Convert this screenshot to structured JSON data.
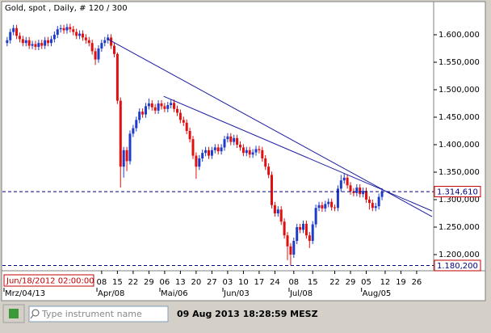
{
  "chart_data": {
    "type": "candlestick",
    "title": "Gold, spot , Daily, # 120 / 300",
    "up_color": "#1e3cc8",
    "down_color": "#e01010",
    "xlim": [
      -1.5,
      135.4
    ],
    "ylim": [
      1170.6,
      1658.8
    ],
    "yticks": [
      {
        "value": 1200,
        "label": "1.200,000"
      },
      {
        "value": 1250,
        "label": "1.250,000"
      },
      {
        "value": 1300,
        "label": "1.300,000"
      },
      {
        "value": 1350,
        "label": "1.350,000"
      },
      {
        "value": 1400,
        "label": "1.400,000"
      },
      {
        "value": 1450,
        "label": "1.450,000"
      },
      {
        "value": 1500,
        "label": "1.500,000"
      },
      {
        "value": 1550,
        "label": "1.550,000"
      },
      {
        "value": 1600,
        "label": "1.600,000"
      }
    ],
    "xticks": [
      {
        "value": 30,
        "label": "08"
      },
      {
        "value": 35,
        "label": "15"
      },
      {
        "value": 40,
        "label": "22"
      },
      {
        "value": 45,
        "label": "29"
      },
      {
        "value": 50,
        "label": "06"
      },
      {
        "value": 55,
        "label": "13"
      },
      {
        "value": 60,
        "label": "20"
      },
      {
        "value": 65,
        "label": "27"
      },
      {
        "value": 70,
        "label": "03"
      },
      {
        "value": 75,
        "label": "10"
      },
      {
        "value": 80,
        "label": "17"
      },
      {
        "value": 85,
        "label": "24"
      },
      {
        "value": 91,
        "label": "08"
      },
      {
        "value": 97,
        "label": "15"
      },
      {
        "value": 104,
        "label": "22"
      },
      {
        "value": 109,
        "label": "29"
      },
      {
        "value": 114,
        "label": "05"
      },
      {
        "value": 120,
        "label": "12"
      },
      {
        "value": 125,
        "label": "19"
      },
      {
        "value": 130,
        "label": "26"
      }
    ],
    "month_labels": [
      {
        "value": -1,
        "label": "Mrz/04/13"
      },
      {
        "value": 28.5,
        "label": "Apr/08"
      },
      {
        "value": 48.5,
        "label": "Mai/06"
      },
      {
        "value": 68.5,
        "label": "Jun/03"
      },
      {
        "value": 89.5,
        "label": "Jul/08"
      },
      {
        "value": 112.5,
        "label": "Aug/05"
      }
    ],
    "cursor_label": "Jun/18/2012 02:00:00",
    "levels": [
      {
        "value": 1314.61,
        "label": "1.314,610"
      },
      {
        "value": 1180.2,
        "label": "1.180,200"
      }
    ],
    "trend_lines": [
      {
        "x": [
          31.8,
          134.9
        ],
        "y": [
          1592.6,
          1269
        ]
      },
      {
        "x": [
          49.7,
          134.9
        ],
        "y": [
          1488,
          1279.4
        ]
      }
    ],
    "open": [
      1585,
      1590,
      1605,
      1612,
      1598,
      1592,
      1585,
      1590,
      1580,
      1583,
      1578,
      1585,
      1580,
      1590,
      1585,
      1592,
      1600,
      1610,
      1612,
      1608,
      1614,
      1610,
      1605,
      1598,
      1602,
      1595,
      1590,
      1585,
      1570,
      1555,
      1575,
      1585,
      1590,
      1595,
      1580,
      1565,
      1480,
      1360,
      1390,
      1370,
      1420,
      1430,
      1445,
      1460,
      1455,
      1470,
      1475,
      1468,
      1462,
      1475,
      1470,
      1465,
      1472,
      1476,
      1465,
      1458,
      1445,
      1440,
      1425,
      1410,
      1380,
      1360,
      1375,
      1385,
      1390,
      1380,
      1390,
      1395,
      1388,
      1395,
      1410,
      1415,
      1405,
      1412,
      1400,
      1395,
      1385,
      1390,
      1382,
      1386,
      1392,
      1390,
      1375,
      1360,
      1345,
      1290,
      1275,
      1282,
      1260,
      1235,
      1215,
      1200,
      1225,
      1250,
      1245,
      1256,
      1235,
      1225,
      1255,
      1285,
      1290,
      1284,
      1292,
      1296,
      1286,
      1285,
      1320,
      1335,
      1340,
      1326,
      1315,
      1312,
      1322,
      1310,
      1316,
      1300,
      1294,
      1285,
      1288,
      1305
    ],
    "high": [
      1596,
      1611,
      1618,
      1618,
      1604,
      1598,
      1596,
      1596,
      1589,
      1589,
      1591,
      1591,
      1596,
      1596,
      1598,
      1606,
      1616,
      1618,
      1618,
      1620,
      1620,
      1616,
      1611,
      1608,
      1608,
      1601,
      1596,
      1591,
      1576,
      1581,
      1591,
      1596,
      1601,
      1601,
      1586,
      1568,
      1486,
      1396,
      1396,
      1426,
      1436,
      1451,
      1466,
      1466,
      1476,
      1484,
      1481,
      1474,
      1481,
      1481,
      1476,
      1478,
      1482,
      1482,
      1471,
      1464,
      1451,
      1446,
      1431,
      1416,
      1386,
      1381,
      1391,
      1396,
      1396,
      1396,
      1401,
      1401,
      1401,
      1416,
      1421,
      1421,
      1418,
      1418,
      1406,
      1401,
      1396,
      1396,
      1392,
      1398,
      1398,
      1396,
      1381,
      1366,
      1351,
      1296,
      1288,
      1288,
      1266,
      1241,
      1221,
      1231,
      1256,
      1256,
      1262,
      1262,
      1241,
      1261,
      1291,
      1296,
      1296,
      1298,
      1302,
      1302,
      1291,
      1326,
      1345,
      1348,
      1346,
      1332,
      1321,
      1328,
      1328,
      1322,
      1322,
      1306,
      1300,
      1294,
      1311,
      1321
    ],
    "low": [
      1579,
      1584,
      1599,
      1592,
      1586,
      1579,
      1579,
      1574,
      1574,
      1572,
      1572,
      1574,
      1574,
      1579,
      1579,
      1586,
      1594,
      1604,
      1602,
      1602,
      1604,
      1599,
      1592,
      1592,
      1589,
      1584,
      1579,
      1564,
      1545,
      1549,
      1569,
      1579,
      1584,
      1574,
      1559,
      1474,
      1322,
      1340,
      1352,
      1364,
      1414,
      1424,
      1439,
      1449,
      1449,
      1464,
      1462,
      1456,
      1456,
      1464,
      1459,
      1459,
      1466,
      1459,
      1452,
      1439,
      1434,
      1419,
      1404,
      1374,
      1338,
      1354,
      1369,
      1379,
      1374,
      1374,
      1384,
      1382,
      1382,
      1389,
      1404,
      1399,
      1399,
      1394,
      1389,
      1379,
      1379,
      1376,
      1376,
      1380,
      1384,
      1369,
      1354,
      1339,
      1284,
      1269,
      1269,
      1254,
      1229,
      1190,
      1180.2,
      1194,
      1219,
      1239,
      1239,
      1229,
      1212,
      1219,
      1249,
      1279,
      1278,
      1278,
      1286,
      1280,
      1279,
      1279,
      1314,
      1329,
      1320,
      1309,
      1306,
      1306,
      1304,
      1304,
      1294,
      1282,
      1279,
      1279,
      1282,
      1299
    ],
    "close": [
      1590,
      1605,
      1612,
      1598,
      1592,
      1585,
      1590,
      1580,
      1583,
      1578,
      1585,
      1580,
      1590,
      1585,
      1592,
      1600,
      1610,
      1612,
      1608,
      1614,
      1610,
      1605,
      1598,
      1602,
      1595,
      1590,
      1585,
      1570,
      1555,
      1575,
      1585,
      1590,
      1595,
      1580,
      1565,
      1480,
      1360,
      1390,
      1370,
      1420,
      1430,
      1445,
      1460,
      1455,
      1470,
      1475,
      1468,
      1462,
      1475,
      1470,
      1465,
      1472,
      1476,
      1465,
      1458,
      1445,
      1440,
      1425,
      1410,
      1380,
      1360,
      1375,
      1385,
      1390,
      1380,
      1390,
      1395,
      1388,
      1395,
      1410,
      1415,
      1405,
      1412,
      1400,
      1395,
      1385,
      1390,
      1382,
      1386,
      1392,
      1390,
      1375,
      1360,
      1345,
      1290,
      1275,
      1282,
      1260,
      1235,
      1215,
      1200,
      1225,
      1250,
      1245,
      1256,
      1235,
      1225,
      1255,
      1285,
      1290,
      1284,
      1292,
      1296,
      1286,
      1285,
      1320,
      1335,
      1340,
      1326,
      1315,
      1312,
      1322,
      1310,
      1316,
      1300,
      1294,
      1285,
      1288,
      1305,
      1314.61
    ]
  },
  "toolbar": {
    "search_placeholder": "Type instrument name",
    "clock": "09 Aug 2013 18:28:59 MESZ"
  }
}
